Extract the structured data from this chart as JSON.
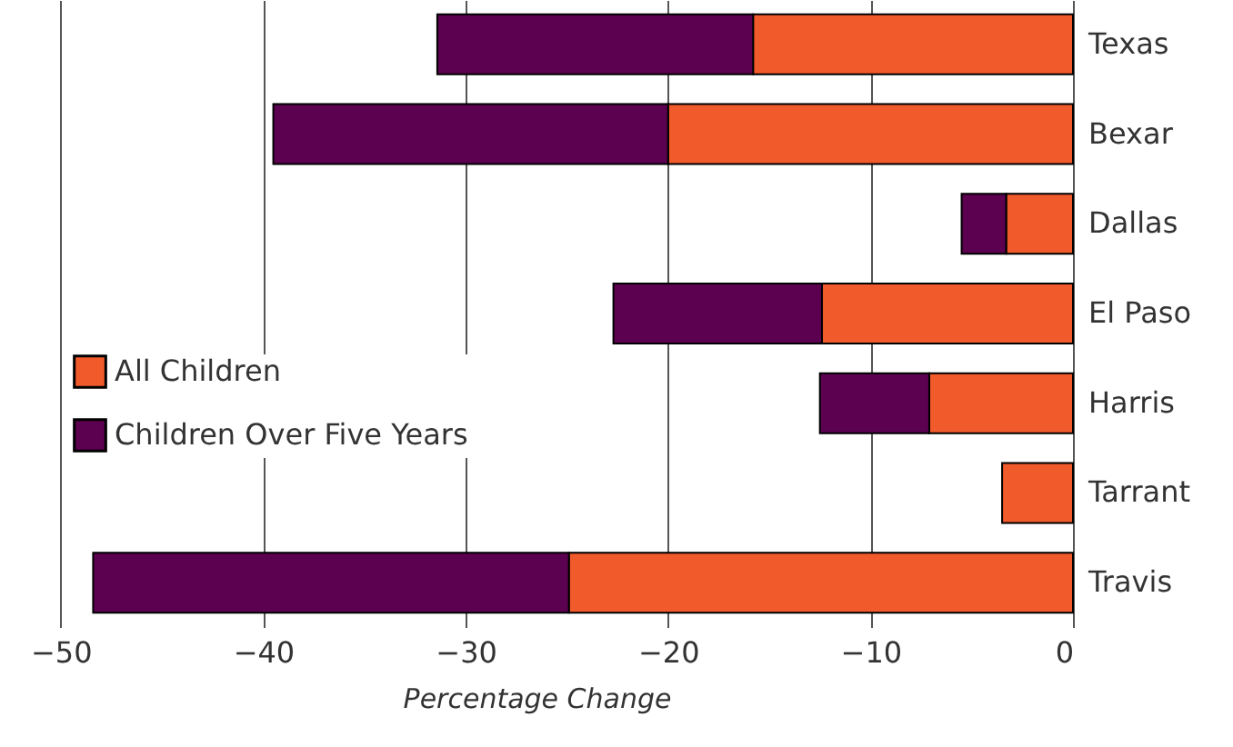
{
  "chart_data": {
    "type": "bar",
    "orientation": "horizontal",
    "stacked": true,
    "xlabel": "Percentage  Change",
    "categories": [
      "Texas",
      "Bexar",
      "Dallas",
      "El Paso",
      "Harris",
      "Tarrant",
      "Travis"
    ],
    "series": [
      {
        "name": "All Children",
        "color": "#f15a2b",
        "values": [
          -15.8,
          -20.0,
          -3.3,
          -12.4,
          -7.1,
          -3.5,
          -24.9
        ]
      },
      {
        "name": "Children Over Five Years",
        "color": "#5c0050",
        "values": [
          -15.6,
          -19.5,
          -2.2,
          -10.3,
          -5.4,
          null,
          -23.5
        ]
      }
    ],
    "xlim": [
      -53,
      0
    ],
    "xticks": [
      -50,
      -40,
      -30,
      -20,
      -10,
      0
    ],
    "grid": "x",
    "legend": "left"
  }
}
